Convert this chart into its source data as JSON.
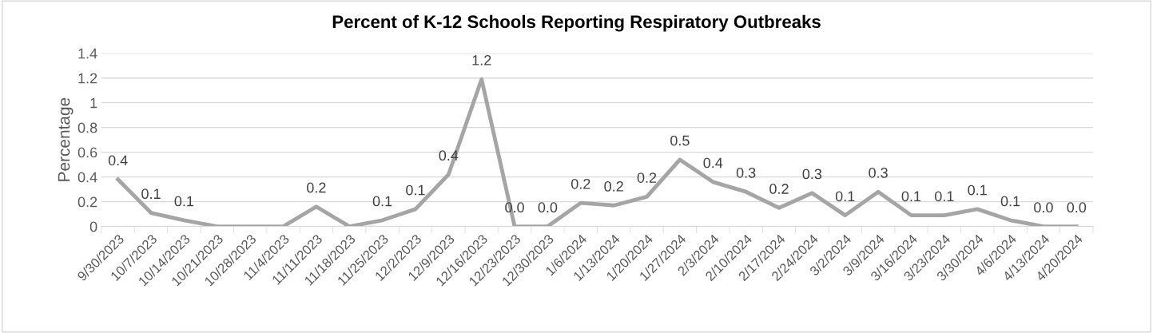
{
  "chart_data": {
    "type": "line",
    "title": "Percent of K-12 Schools Reporting Respiratory Outbreaks",
    "ylabel": "Percentage",
    "categories": [
      "9/30/2023",
      "10/7/2023",
      "10/14/2023",
      "10/21/2023",
      "10/28/2023",
      "11/4/2023",
      "11/11/2023",
      "11/18/2023",
      "11/25/2023",
      "12/2/2023",
      "12/9/2023",
      "12/16/2023",
      "12/23/2023",
      "12/30/2023",
      "1/6/2024",
      "1/13/2024",
      "1/20/2024",
      "1/27/2024",
      "2/3/2024",
      "2/10/2024",
      "2/17/2024",
      "2/24/2024",
      "3/2/2024",
      "3/9/2024",
      "3/16/2024",
      "3/23/2024",
      "3/30/2024",
      "4/6/2024",
      "4/13/2024",
      "4/20/2024"
    ],
    "series": [
      {
        "color": "#a5a5a5",
        "values": [
          0.38,
          0.11,
          0.05,
          0,
          0,
          0,
          0.16,
          0,
          0.05,
          0.14,
          0.42,
          1.19,
          0,
          0,
          0.19,
          0.17,
          0.24,
          0.54,
          0.36,
          0.28,
          0.15,
          0.27,
          0.09,
          0.28,
          0.09,
          0.09,
          0.14,
          0.05,
          0,
          0
        ],
        "value_labels": [
          "0.4",
          "0.1",
          "0.1",
          null,
          null,
          null,
          "0.2",
          null,
          "0.1",
          "0.1",
          "0.4",
          "1.2",
          "0.0",
          "0.0",
          "0.2",
          "0.2",
          "0.2",
          "0.5",
          "0.4",
          "0.3",
          "0.2",
          "0.3",
          "0.1",
          "0.3",
          "0.1",
          "0.1",
          "0.1",
          "0.1",
          "0.0",
          "0.0"
        ]
      }
    ],
    "ylim": [
      0,
      1.4
    ],
    "yticks": [
      0,
      0.2,
      0.4,
      0.6,
      0.8,
      1,
      1.2,
      1.4
    ],
    "grid": "y",
    "marker": "none",
    "line_style": "solid"
  }
}
